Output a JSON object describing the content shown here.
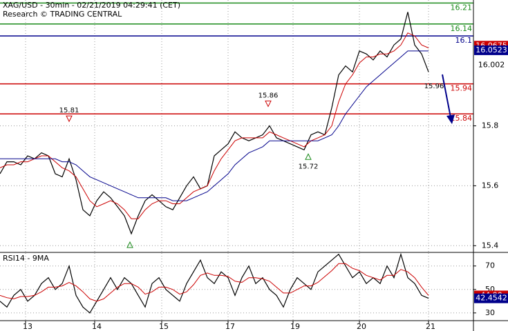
{
  "chart_data": [
    {
      "type": "line",
      "title": "XAG/USD - 30min - 02/21/2019 04:29:41 (CET)",
      "subtitle": "Research © TRADING CENTRAL",
      "x": [
        0,
        1,
        2,
        3,
        4,
        5,
        6,
        7,
        8,
        9,
        10,
        11,
        12,
        13,
        14,
        15,
        16,
        17,
        18,
        19,
        20,
        21,
        22,
        23,
        24,
        25,
        26,
        27,
        28,
        29,
        30,
        31,
        32,
        33,
        34,
        35,
        36,
        37,
        38,
        39,
        40,
        41,
        42,
        43,
        44,
        45,
        46,
        47,
        48,
        49,
        50,
        51,
        52,
        53,
        54,
        55,
        56,
        57,
        58,
        59,
        60,
        61,
        62
      ],
      "series": [
        {
          "color": "#000000",
          "values": [
            15.64,
            15.68,
            15.68,
            15.67,
            15.7,
            15.69,
            15.71,
            15.7,
            15.64,
            15.63,
            15.69,
            15.62,
            15.52,
            15.5,
            15.55,
            15.58,
            15.56,
            15.53,
            15.5,
            15.44,
            15.5,
            15.55,
            15.57,
            15.55,
            15.53,
            15.52,
            15.56,
            15.6,
            15.63,
            15.59,
            15.6,
            15.7,
            15.72,
            15.74,
            15.78,
            15.76,
            15.75,
            15.76,
            15.77,
            15.8,
            15.76,
            15.75,
            15.74,
            15.73,
            15.72,
            15.77,
            15.78,
            15.77,
            15.86,
            15.97,
            16.0,
            15.98,
            16.05,
            16.04,
            16.02,
            16.05,
            16.03,
            16.07,
            16.09,
            16.18,
            16.07,
            16.04,
            15.98
          ]
        },
        {
          "color": "#cc0000",
          "values": [
            15.66,
            15.67,
            15.67,
            15.68,
            15.68,
            15.69,
            15.7,
            15.7,
            15.68,
            15.66,
            15.65,
            15.63,
            15.59,
            15.55,
            15.53,
            15.54,
            15.55,
            15.54,
            15.52,
            15.49,
            15.49,
            15.52,
            15.54,
            15.55,
            15.55,
            15.54,
            15.54,
            15.56,
            15.58,
            15.59,
            15.6,
            15.65,
            15.69,
            15.72,
            15.75,
            15.76,
            15.76,
            15.76,
            15.76,
            15.78,
            15.77,
            15.76,
            15.75,
            15.74,
            15.73,
            15.75,
            15.76,
            15.77,
            15.8,
            15.88,
            15.94,
            15.97,
            16.01,
            16.03,
            16.03,
            16.04,
            16.04,
            16.05,
            16.07,
            16.11,
            16.1,
            16.07,
            16.06
          ]
        },
        {
          "color": "#00008b",
          "values": [
            15.69,
            15.69,
            15.69,
            15.69,
            15.69,
            15.69,
            15.69,
            15.69,
            15.69,
            15.68,
            15.68,
            15.67,
            15.65,
            15.63,
            15.62,
            15.61,
            15.6,
            15.59,
            15.58,
            15.57,
            15.56,
            15.56,
            15.56,
            15.56,
            15.56,
            15.55,
            15.55,
            15.55,
            15.56,
            15.57,
            15.58,
            15.6,
            15.62,
            15.64,
            15.67,
            15.69,
            15.71,
            15.72,
            15.73,
            15.75,
            15.75,
            15.75,
            15.75,
            15.75,
            15.75,
            15.75,
            15.75,
            15.76,
            15.77,
            15.8,
            15.84,
            15.87,
            15.9,
            15.93,
            15.95,
            15.97,
            15.99,
            16.01,
            16.03,
            16.05,
            16.05,
            16.05,
            16.05
          ]
        }
      ],
      "xlim": [
        0,
        68
      ],
      "ylim": [
        15.38,
        16.22
      ],
      "yticks": [
        15.4,
        15.6,
        15.8
      ],
      "levels": [
        {
          "value": 16.21,
          "color": "#1a8a1a"
        },
        {
          "value": 16.14,
          "color": "#1a8a1a"
        },
        {
          "value": 16.1,
          "color": "#00008b"
        },
        {
          "value": 15.94,
          "color": "#cc0000"
        },
        {
          "value": 15.84,
          "color": "#cc0000"
        }
      ],
      "annotations": [
        {
          "value": 15.81,
          "x": 10,
          "color": "#cc0000"
        },
        {
          "value": 15.86,
          "x": 38.8,
          "color": "#cc0000"
        },
        {
          "value": 15.72,
          "x": 44.6,
          "color": "#1a8a1a"
        },
        {
          "value": 15.96,
          "x": 63
        }
      ],
      "price_labels": [
        {
          "value": 16.0675,
          "color": "#cc0000"
        },
        {
          "value": 16.0523,
          "color": "#00008b"
        },
        {
          "value": 16.002
        }
      ]
    },
    {
      "type": "line",
      "title": "RSI14 - 9MA",
      "x": [
        0,
        1,
        2,
        3,
        4,
        5,
        6,
        7,
        8,
        9,
        10,
        11,
        12,
        13,
        14,
        15,
        16,
        17,
        18,
        19,
        20,
        21,
        22,
        23,
        24,
        25,
        26,
        27,
        28,
        29,
        30,
        31,
        32,
        33,
        34,
        35,
        36,
        37,
        38,
        39,
        40,
        41,
        42,
        43,
        44,
        45,
        46,
        47,
        48,
        49,
        50,
        51,
        52,
        53,
        54,
        55,
        56,
        57,
        58,
        59,
        60,
        61,
        62
      ],
      "series": [
        {
          "color": "#000000",
          "values": [
            40,
            35,
            45,
            50,
            40,
            45,
            55,
            60,
            50,
            55,
            70,
            45,
            35,
            30,
            40,
            50,
            60,
            50,
            60,
            55,
            45,
            35,
            55,
            60,
            50,
            45,
            40,
            55,
            65,
            75,
            60,
            55,
            65,
            60,
            45,
            60,
            70,
            55,
            60,
            50,
            45,
            35,
            50,
            60,
            55,
            50,
            65,
            70,
            75,
            80,
            70,
            60,
            65,
            55,
            60,
            55,
            70,
            60,
            80,
            60,
            55,
            45,
            42.4542
          ]
        },
        {
          "color": "#cc0000",
          "values": [
            45,
            43,
            42,
            44,
            44,
            45,
            48,
            52,
            52,
            53,
            56,
            53,
            48,
            42,
            40,
            42,
            47,
            52,
            55,
            55,
            52,
            46,
            48,
            52,
            52,
            50,
            46,
            48,
            54,
            62,
            64,
            62,
            62,
            61,
            57,
            56,
            60,
            60,
            59,
            57,
            52,
            47,
            47,
            50,
            53,
            53,
            56,
            61,
            66,
            72,
            72,
            68,
            66,
            62,
            60,
            58,
            62,
            62,
            67,
            65,
            60,
            52,
            44.9
          ]
        }
      ],
      "xlim": [
        0,
        68
      ],
      "xticks": [
        {
          "value": 3.7,
          "label": "13"
        },
        {
          "value": 13.7,
          "label": "14"
        },
        {
          "value": 23.4,
          "label": "15"
        },
        {
          "value": 33,
          "label": "17"
        },
        {
          "value": 42.4,
          "label": "19"
        },
        {
          "value": 52,
          "label": "20"
        },
        {
          "value": 62,
          "label": "21"
        }
      ],
      "ylim": [
        24,
        81
      ],
      "yticks": [
        30,
        50,
        70
      ],
      "price_labels": [
        {
          "value": 44.9,
          "label": "44.90",
          "color": "#cc0000"
        },
        {
          "value": 42.4542,
          "color": "#00008b"
        }
      ]
    }
  ]
}
